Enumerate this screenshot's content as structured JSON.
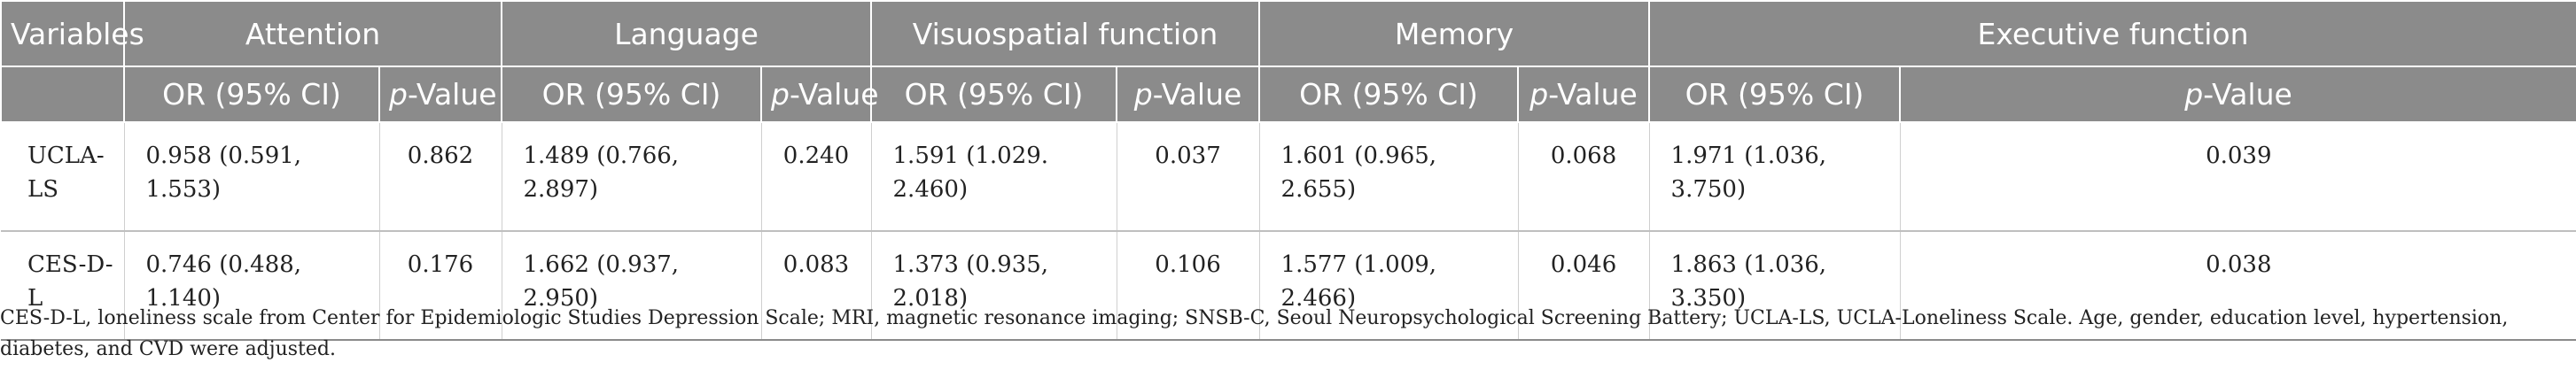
{
  "table": {
    "header_variables": "Variables",
    "groups": [
      "Attention",
      "Language",
      "Visuospatial function",
      "Memory",
      "Executive function"
    ],
    "sub_or": "OR (95% CI)",
    "sub_p_italic": "p",
    "sub_p_rest": "-Value",
    "rows": [
      {
        "variable": "UCLA-LS",
        "cells": [
          {
            "or": "0.958 (0.591, 1.553)",
            "p": "0.862"
          },
          {
            "or": "1.489 (0.766, 2.897)",
            "p": "0.240"
          },
          {
            "or": "1.591 (1.029. 2.460)",
            "p": "0.037"
          },
          {
            "or": "1.601 (0.965, 2.655)",
            "p": "0.068"
          },
          {
            "or": "1.971 (1.036, 3.750)",
            "p": "0.039"
          }
        ]
      },
      {
        "variable": "CES-D-L",
        "cells": [
          {
            "or": "0.746 (0.488, 1.140)",
            "p": "0.176"
          },
          {
            "or": "1.662 (0.937, 2.950)",
            "p": "0.083"
          },
          {
            "or": "1.373 (0.935, 2.018)",
            "p": "0.106"
          },
          {
            "or": "1.577 (1.009, 2.466)",
            "p": "0.046"
          },
          {
            "or": "1.863 (1.036, 3.350)",
            "p": "0.038"
          }
        ]
      }
    ]
  },
  "footnote": "CES-D-L, loneliness scale from Center for Epidemiologic Studies Depression Scale; MRI, magnetic resonance imaging; SNSB-C, Seoul Neuropsychological Screening Battery; UCLA-LS, UCLA-Loneliness Scale. Age, gender, education level, hypertension, diabetes, and CVD were adjusted.",
  "colors": {
    "header_bg": "#8b8b8b",
    "header_text": "#ffffff",
    "body_text": "#222222"
  }
}
